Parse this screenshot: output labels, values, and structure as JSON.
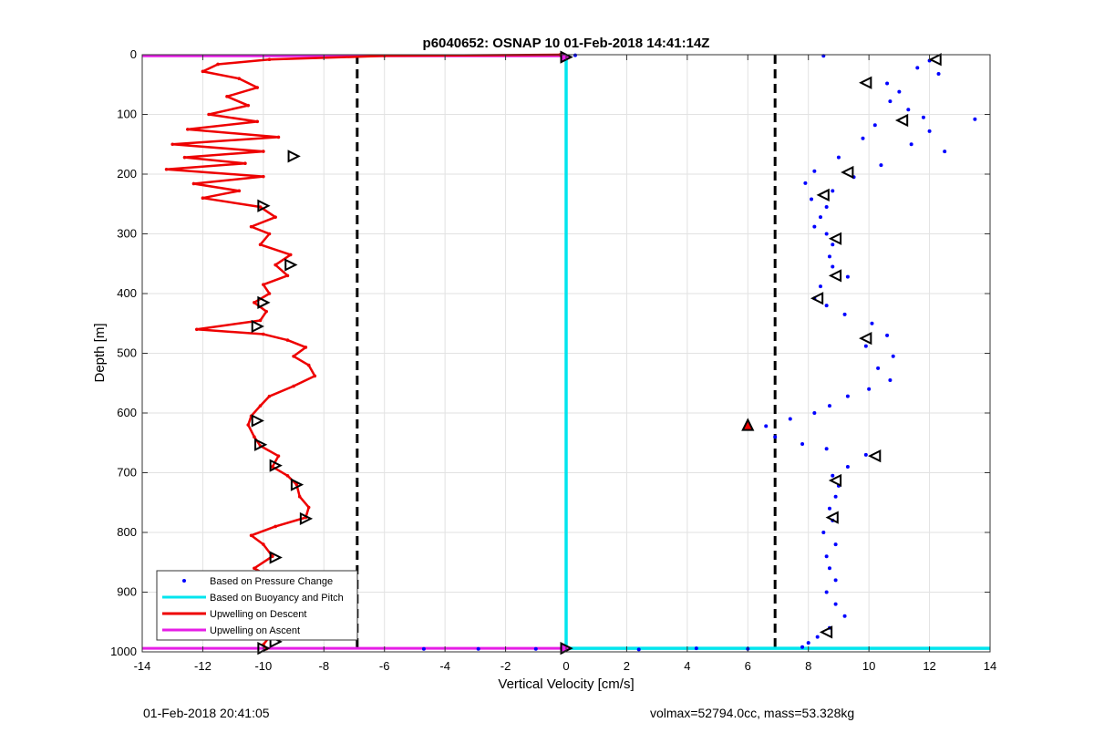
{
  "chart_data": {
    "type": "scatter",
    "title": "p6040652: OSNAP 10 01-Feb-2018 14:41:14Z",
    "xlabel": "Vertical Velocity [cm/s]",
    "ylabel": "Depth [m]",
    "xlim": [
      -14,
      14
    ],
    "ylim": [
      0,
      1000
    ],
    "y_reversed": true,
    "grid": true,
    "legend_position": "bottom-left",
    "x_ticks": [
      "-14",
      "-12",
      "-10",
      "-8",
      "-6",
      "-4",
      "-2",
      "0",
      "2",
      "4",
      "6",
      "8",
      "10",
      "12",
      "14"
    ],
    "y_ticks": [
      "0",
      "100",
      "200",
      "300",
      "400",
      "500",
      "600",
      "700",
      "800",
      "900",
      "1000"
    ],
    "reference_lines_x": [
      -6.9,
      6.9
    ],
    "series": [
      {
        "name": "Based on Pressure Change",
        "color": "#0000ff",
        "style": "dots",
        "points": [
          [
            8.5,
            2
          ],
          [
            12.0,
            10
          ],
          [
            11.6,
            22
          ],
          [
            12.3,
            32
          ],
          [
            10.6,
            48
          ],
          [
            11.0,
            62
          ],
          [
            10.7,
            78
          ],
          [
            11.3,
            92
          ],
          [
            11.8,
            105
          ],
          [
            13.5,
            108
          ],
          [
            10.2,
            118
          ],
          [
            12.0,
            128
          ],
          [
            9.8,
            140
          ],
          [
            11.4,
            150
          ],
          [
            12.5,
            162
          ],
          [
            9.0,
            172
          ],
          [
            10.4,
            185
          ],
          [
            8.2,
            195
          ],
          [
            9.5,
            205
          ],
          [
            7.9,
            215
          ],
          [
            8.8,
            228
          ],
          [
            8.1,
            242
          ],
          [
            8.6,
            255
          ],
          [
            8.4,
            272
          ],
          [
            8.2,
            288
          ],
          [
            8.6,
            300
          ],
          [
            8.8,
            318
          ],
          [
            8.7,
            338
          ],
          [
            8.8,
            355
          ],
          [
            9.3,
            372
          ],
          [
            8.4,
            388
          ],
          [
            8.2,
            408
          ],
          [
            8.6,
            420
          ],
          [
            9.2,
            435
          ],
          [
            10.1,
            450
          ],
          [
            10.6,
            470
          ],
          [
            9.9,
            488
          ],
          [
            10.8,
            505
          ],
          [
            10.3,
            525
          ],
          [
            10.7,
            545
          ],
          [
            10.0,
            560
          ],
          [
            9.3,
            572
          ],
          [
            8.7,
            588
          ],
          [
            8.2,
            600
          ],
          [
            7.4,
            610
          ],
          [
            6.6,
            622
          ],
          [
            6.9,
            640
          ],
          [
            7.8,
            652
          ],
          [
            8.6,
            660
          ],
          [
            9.9,
            670
          ],
          [
            9.3,
            690
          ],
          [
            8.8,
            705
          ],
          [
            9.0,
            722
          ],
          [
            8.9,
            740
          ],
          [
            8.7,
            760
          ],
          [
            8.8,
            780
          ],
          [
            8.5,
            800
          ],
          [
            8.9,
            820
          ],
          [
            8.6,
            840
          ],
          [
            8.7,
            860
          ],
          [
            8.9,
            880
          ],
          [
            8.6,
            900
          ],
          [
            8.9,
            920
          ],
          [
            9.2,
            940
          ],
          [
            8.7,
            960
          ],
          [
            8.3,
            975
          ],
          [
            8.0,
            985
          ],
          [
            7.8,
            992
          ],
          [
            6.0,
            995
          ],
          [
            4.3,
            994
          ],
          [
            2.4,
            996
          ],
          [
            -1.0,
            995
          ],
          [
            -2.9,
            995
          ],
          [
            -4.7,
            995
          ],
          [
            0.3,
            1
          ]
        ]
      },
      {
        "name": "Based on Buoyancy and Pitch",
        "color": "#00e5ee",
        "style": "line",
        "points": [
          [
            0,
            0
          ],
          [
            0,
            985
          ],
          [
            0,
            994
          ],
          [
            14,
            994
          ]
        ]
      },
      {
        "name": "Upwelling on Descent",
        "color": "#ee0000",
        "style": "line",
        "points": [
          [
            -0.2,
            0
          ],
          [
            -6.0,
            2
          ],
          [
            -9.8,
            8
          ],
          [
            -11.5,
            16
          ],
          [
            -12.0,
            28
          ],
          [
            -10.8,
            40
          ],
          [
            -10.2,
            55
          ],
          [
            -11.2,
            70
          ],
          [
            -10.5,
            85
          ],
          [
            -11.8,
            100
          ],
          [
            -10.2,
            112
          ],
          [
            -12.5,
            125
          ],
          [
            -9.5,
            138
          ],
          [
            -13.0,
            150
          ],
          [
            -10.0,
            162
          ],
          [
            -12.6,
            172
          ],
          [
            -10.6,
            182
          ],
          [
            -13.2,
            192
          ],
          [
            -10.0,
            204
          ],
          [
            -12.3,
            216
          ],
          [
            -10.8,
            228
          ],
          [
            -12.0,
            240
          ],
          [
            -10.1,
            255
          ],
          [
            -9.6,
            272
          ],
          [
            -10.4,
            288
          ],
          [
            -9.8,
            300
          ],
          [
            -10.1,
            318
          ],
          [
            -9.1,
            335
          ],
          [
            -9.6,
            352
          ],
          [
            -9.2,
            370
          ],
          [
            -10.0,
            385
          ],
          [
            -9.8,
            400
          ],
          [
            -10.3,
            415
          ],
          [
            -9.9,
            430
          ],
          [
            -10.1,
            445
          ],
          [
            -12.2,
            460
          ],
          [
            -10.0,
            468
          ],
          [
            -9.2,
            478
          ],
          [
            -8.6,
            490
          ],
          [
            -9.0,
            505
          ],
          [
            -8.5,
            520
          ],
          [
            -8.3,
            538
          ],
          [
            -9.0,
            555
          ],
          [
            -9.8,
            572
          ],
          [
            -10.1,
            588
          ],
          [
            -10.4,
            605
          ],
          [
            -10.5,
            620
          ],
          [
            -10.3,
            640
          ],
          [
            -10.1,
            655
          ],
          [
            -9.5,
            672
          ],
          [
            -9.7,
            690
          ],
          [
            -9.2,
            705
          ],
          [
            -8.9,
            720
          ],
          [
            -8.8,
            740
          ],
          [
            -8.5,
            758
          ],
          [
            -8.6,
            775
          ],
          [
            -9.6,
            790
          ],
          [
            -10.4,
            805
          ],
          [
            -10.0,
            820
          ],
          [
            -9.7,
            840
          ],
          [
            -10.3,
            860
          ],
          [
            -9.6,
            880
          ],
          [
            -10.2,
            900
          ],
          [
            -9.8,
            920
          ],
          [
            -10.3,
            940
          ],
          [
            -9.6,
            960
          ],
          [
            -9.8,
            975
          ],
          [
            -10.0,
            988
          ],
          [
            -9.9,
            995
          ]
        ]
      },
      {
        "name": "Upwelling on Ascent",
        "color": "#e61ee6",
        "style": "line",
        "points": [
          [
            -14,
            2
          ],
          [
            0,
            2
          ],
          [
            -14,
            994
          ],
          [
            0,
            994
          ]
        ]
      }
    ],
    "markers": {
      "descent_right_triangles": [
        [
          -9.0,
          170
        ],
        [
          -10.0,
          253
        ],
        [
          -9.1,
          352
        ],
        [
          -10.0,
          415
        ],
        [
          -10.2,
          455
        ],
        [
          -10.2,
          613
        ],
        [
          -10.1,
          653
        ],
        [
          -9.6,
          688
        ],
        [
          -8.9,
          720
        ],
        [
          -8.6,
          777
        ],
        [
          -9.6,
          842
        ],
        [
          -9.5,
          880
        ],
        [
          -9.2,
          948
        ],
        [
          -9.6,
          983
        ],
        [
          -10.0,
          994
        ]
      ],
      "ascent_left_triangles": [
        [
          12.2,
          8
        ],
        [
          9.9,
          47
        ],
        [
          11.1,
          110
        ],
        [
          9.3,
          197
        ],
        [
          8.5,
          235
        ],
        [
          8.9,
          308
        ],
        [
          8.9,
          370
        ],
        [
          8.3,
          408
        ],
        [
          9.9,
          475
        ],
        [
          10.2,
          672
        ],
        [
          8.9,
          713
        ],
        [
          8.8,
          775
        ],
        [
          8.6,
          967
        ]
      ],
      "ends": [
        [
          0,
          4
        ],
        [
          0,
          994
        ]
      ],
      "red_triangle": [
        6.0,
        620
      ]
    },
    "legend": {
      "entries": [
        "Based on Pressure Change",
        "Based on Buoyancy and Pitch",
        "Upwelling on Descent",
        "Upwelling on Ascent"
      ]
    }
  },
  "footer": {
    "left": "01-Feb-2018 20:41:05",
    "right": "volmax=52794.0cc, mass=53.328kg"
  }
}
